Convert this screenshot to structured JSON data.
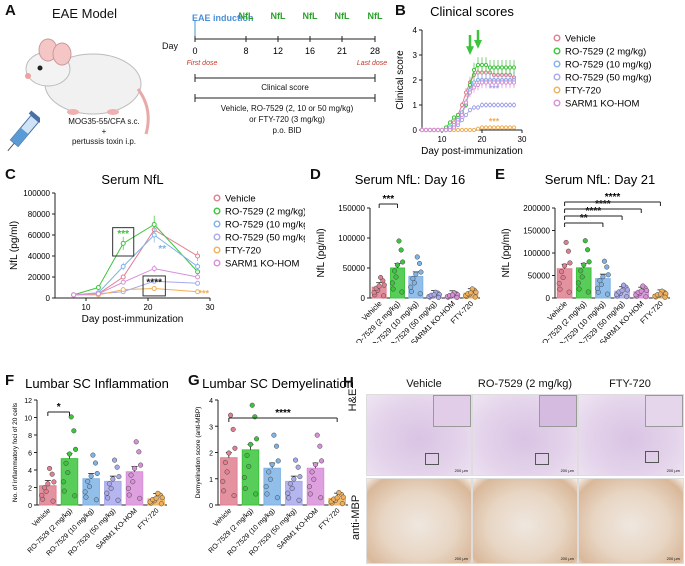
{
  "panelA": {
    "letter": "A",
    "model_title": "EAE Model",
    "mouse_treatment_line1": "MOG35-55/CFA s.c.",
    "plus": "+",
    "mouse_treatment_line2": "pertussis toxin i.p.",
    "timeline": {
      "eae_induction": "EAE induction",
      "nfl_labels": [
        "NfL",
        "NfL",
        "NfL",
        "NfL",
        "NfL"
      ],
      "day_word": "Day",
      "days": [
        "0",
        "8",
        "12",
        "16",
        "21",
        "28"
      ],
      "first_dose": "First dose",
      "last_dose": "Last dose",
      "clinical_score": "Clinical score",
      "treatment_line1": "Vehicle, RO-7529 (2, 10 or 50 mg/kg)",
      "treatment_line2": "or FTY-720 (3 mg/kg)",
      "treatment_line3": "p.o. BID"
    },
    "colors": {
      "induction": "#4a90d9",
      "nfl": "#2aa02a",
      "dose": "#c0392b"
    }
  },
  "legend": [
    {
      "label": "Vehicle",
      "color": "#e07f8f"
    },
    {
      "label": "RO-7529 (2 mg/kg)",
      "color": "#3cc43c"
    },
    {
      "label": "RO-7529 (10 mg/kg)",
      "color": "#7fb3e6"
    },
    {
      "label": "RO-7529 (50 mg/kg)",
      "color": "#a8a8ec"
    },
    {
      "label": "FTY-720",
      "color": "#f0b05a"
    },
    {
      "label": "SARM1 KO-HOM",
      "color": "#d88fd8"
    }
  ],
  "panelB": {
    "letter": "B"
  },
  "panelC": {
    "letter": "C"
  },
  "panelD": {
    "letter": "D"
  },
  "panelE": {
    "letter": "E"
  },
  "panelF": {
    "letter": "F"
  },
  "panelG": {
    "letter": "G"
  },
  "panelH": {
    "letter": "H",
    "columns": [
      "Vehicle",
      "RO-7529 (2 mg/kg)",
      "FTY-720"
    ],
    "rows": [
      "H&E",
      "anti-MBP"
    ],
    "scale_bar": "200 μm"
  },
  "chart_data": [
    {
      "id": "clinical_scores",
      "type": "line",
      "title": "Clinical scores",
      "xlabel": "Day post-immunization",
      "ylabel": "Clinical score",
      "xlim": [
        5,
        30
      ],
      "ylim": [
        0,
        4
      ],
      "xticks": [
        10,
        20,
        30
      ],
      "yticks": [
        0,
        1,
        2,
        3,
        4
      ],
      "x": [
        5,
        6,
        7,
        8,
        9,
        10,
        11,
        12,
        13,
        14,
        15,
        16,
        17,
        18,
        19,
        20,
        21,
        22,
        23,
        24,
        25,
        26,
        27,
        28
      ],
      "series": [
        {
          "name": "Vehicle",
          "values": [
            0,
            0,
            0,
            0,
            0,
            0,
            0,
            0.1,
            0.3,
            0.6,
            1.0,
            1.5,
            1.9,
            2.2,
            2.3,
            2.3,
            2.3,
            2.3,
            2.2,
            2.2,
            2.2,
            2.2,
            2.2,
            2.1
          ]
        },
        {
          "name": "RO-7529 (2 mg/kg)",
          "values": [
            0,
            0,
            0,
            0,
            0,
            0,
            0.1,
            0.3,
            0.5,
            0.6,
            0.7,
            1.0,
            1.8,
            2.4,
            2.6,
            2.6,
            2.6,
            2.5,
            2.5,
            2.5,
            2.5,
            2.5,
            2.5,
            2.5
          ]
        },
        {
          "name": "RO-7529 (10 mg/kg)",
          "values": [
            0,
            0,
            0,
            0,
            0,
            0,
            0,
            0.1,
            0.2,
            0.4,
            0.7,
            1.1,
            1.6,
            1.9,
            2.0,
            2.0,
            2.0,
            2.0,
            2.0,
            2.0,
            2.0,
            2.0,
            2.0,
            2.0
          ]
        },
        {
          "name": "RO-7529 (50 mg/kg)",
          "values": [
            0,
            0,
            0,
            0,
            0,
            0,
            0,
            0,
            0.1,
            0.2,
            0.4,
            0.6,
            0.8,
            0.9,
            0.9,
            1.0,
            1.0,
            1.0,
            1.0,
            1.0,
            1.0,
            1.0,
            1.0,
            1.0
          ]
        },
        {
          "name": "FTY-720",
          "values": [
            0,
            0,
            0,
            0,
            0,
            0,
            0,
            0,
            0,
            0,
            0,
            0,
            0,
            0,
            0.05,
            0.1,
            0.1,
            0.1,
            0.1,
            0.1,
            0.1,
            0.1,
            0.1,
            0.1
          ]
        },
        {
          "name": "SARM1 KO-HOM",
          "values": [
            0,
            0,
            0,
            0,
            0,
            0,
            0,
            0,
            0.1,
            0.3,
            0.6,
            1.1,
            1.5,
            1.7,
            1.8,
            1.9,
            1.9,
            1.9,
            1.9,
            1.9,
            1.9,
            1.9,
            1.9,
            1.9
          ]
        }
      ],
      "annotations": [
        "***",
        "***"
      ]
    },
    {
      "id": "serum_nfl",
      "type": "line",
      "title": "Serum NfL",
      "xlabel": "Day post-immunization",
      "ylabel": "NfL (pg/ml)",
      "xlim": [
        5,
        30
      ],
      "ylim": [
        0,
        100000
      ],
      "xticks": [
        10,
        20,
        30
      ],
      "yticks": [
        0,
        20000,
        40000,
        60000,
        80000,
        100000
      ],
      "x": [
        8,
        12,
        16,
        21,
        28
      ],
      "series": [
        {
          "name": "Vehicle",
          "values": [
            3000,
            4000,
            20000,
            65000,
            40000
          ]
        },
        {
          "name": "RO-7529 (2 mg/kg)",
          "values": [
            3000,
            10000,
            52000,
            70000,
            25000
          ]
        },
        {
          "name": "RO-7529 (10 mg/kg)",
          "values": [
            3000,
            5000,
            30000,
            60000,
            30000
          ]
        },
        {
          "name": "RO-7529 (50 mg/kg)",
          "values": [
            3000,
            4000,
            6000,
            16000,
            14000
          ]
        },
        {
          "name": "FTY-720",
          "values": [
            3000,
            3000,
            8000,
            9000,
            6000
          ]
        },
        {
          "name": "SARM1 KO-HOM",
          "values": [
            3000,
            4000,
            15000,
            28000,
            20000
          ]
        }
      ],
      "annotations": [
        "***",
        "**",
        "****",
        "***"
      ]
    },
    {
      "id": "nfl_day16",
      "type": "bar",
      "title": "Serum NfL: Day 16",
      "ylabel": "NfL (pg/ml)",
      "ylim": [
        0,
        150000
      ],
      "yticks": [
        0,
        50000,
        100000,
        150000
      ],
      "categories": [
        "Vehicle",
        "RO-7529 (2 mg/kg)",
        "RO-7529 (10 mg/kg)",
        "RO-7529 (50 mg/kg)",
        "SARM1 KO-HOM",
        "FTY-720"
      ],
      "values": [
        18000,
        50000,
        36000,
        5000,
        4500,
        8000
      ],
      "significance": [
        {
          "from": 0,
          "to": 1,
          "label": "***"
        }
      ]
    },
    {
      "id": "nfl_day21",
      "type": "bar",
      "title": "Serum NfL: Day 21",
      "ylabel": "NfL (pg/ml)",
      "ylim": [
        0,
        200000
      ],
      "yticks": [
        0,
        50000,
        100000,
        150000,
        200000
      ],
      "categories": [
        "Vehicle",
        "RO-7529 (2 mg/kg)",
        "RO-7529 (10 mg/kg)",
        "RO-7529 (50 mg/kg)",
        "SARM1 KO-HOM",
        "FTY-720"
      ],
      "values": [
        65000,
        67000,
        43000,
        15000,
        14000,
        8000
      ],
      "significance": [
        {
          "from": 0,
          "to": 2,
          "label": "**"
        },
        {
          "from": 0,
          "to": 3,
          "label": "****"
        },
        {
          "from": 0,
          "to": 4,
          "label": "****"
        },
        {
          "from": 0,
          "to": 5,
          "label": "****"
        }
      ]
    },
    {
      "id": "lumbar_inflammation",
      "type": "bar",
      "title": "Lumbar SC Inflammation",
      "ylabel": "No. of inflammatory foci of 20 cells",
      "ylim": [
        0,
        12
      ],
      "yticks": [
        0,
        2,
        4,
        6,
        8,
        10,
        12
      ],
      "categories": [
        "Vehicle",
        "RO-7529 (2 mg/kg)",
        "RO-7529 (10 mg/kg)",
        "RO-7529 (50 mg/kg)",
        "SARM1 KO-HOM",
        "FTY-720"
      ],
      "values": [
        2.2,
        5.3,
        3.0,
        2.7,
        3.8,
        0.7
      ],
      "significance": [
        {
          "from": 0,
          "to": 1,
          "label": "*"
        }
      ]
    },
    {
      "id": "lumbar_demyelination",
      "type": "bar",
      "title": "Lumbar SC Demyelination",
      "ylabel": "Demyelination score (anti-MBP)",
      "ylim": [
        0,
        4
      ],
      "yticks": [
        0,
        1,
        2,
        3,
        4
      ],
      "categories": [
        "Vehicle",
        "RO-7529 (2 mg/kg)",
        "RO-7529 (10 mg/kg)",
        "RO-7529 (50 mg/kg)",
        "SARM1 KO-HOM",
        "FTY-720"
      ],
      "values": [
        1.8,
        2.1,
        1.4,
        0.9,
        1.4,
        0.25
      ],
      "significance": [
        {
          "from": 0,
          "to": 5,
          "label": "****"
        }
      ]
    }
  ]
}
